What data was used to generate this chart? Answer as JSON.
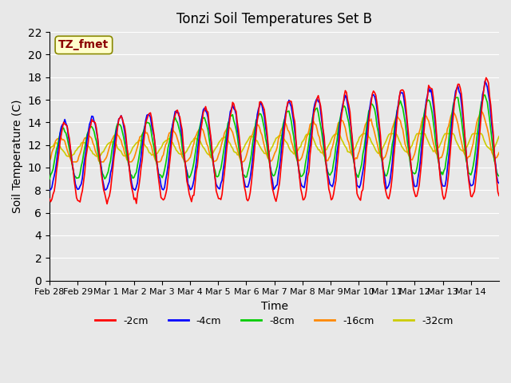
{
  "title": "Tonzi Soil Temperatures Set B",
  "xlabel": "Time",
  "ylabel": "Soil Temperature (C)",
  "ylim": [
    0,
    22
  ],
  "yticks": [
    0,
    2,
    4,
    6,
    8,
    10,
    12,
    14,
    16,
    18,
    20,
    22
  ],
  "annotation_text": "TZ_fmet",
  "annotation_color": "#8B0000",
  "annotation_bg": "#FFFFCC",
  "bg_color": "#E8E8E8",
  "series_colors": [
    "#FF0000",
    "#0000FF",
    "#00CC00",
    "#FF8800",
    "#CCCC00"
  ],
  "series_labels": [
    "-2cm",
    "-4cm",
    "-8cm",
    "-16cm",
    "-32cm"
  ],
  "x_tick_labels": [
    "Feb 28",
    "Feb 29",
    "Mar 1",
    "Mar 2",
    "Mar 3",
    "Mar 4",
    "Mar 5",
    "Mar 6",
    "Mar 7",
    "Mar 8",
    "Mar 9",
    "Mar 10",
    "Mar 11",
    "Mar 12",
    "Mar 13",
    "Mar 14"
  ],
  "n_days": 16,
  "points_per_day": 24
}
